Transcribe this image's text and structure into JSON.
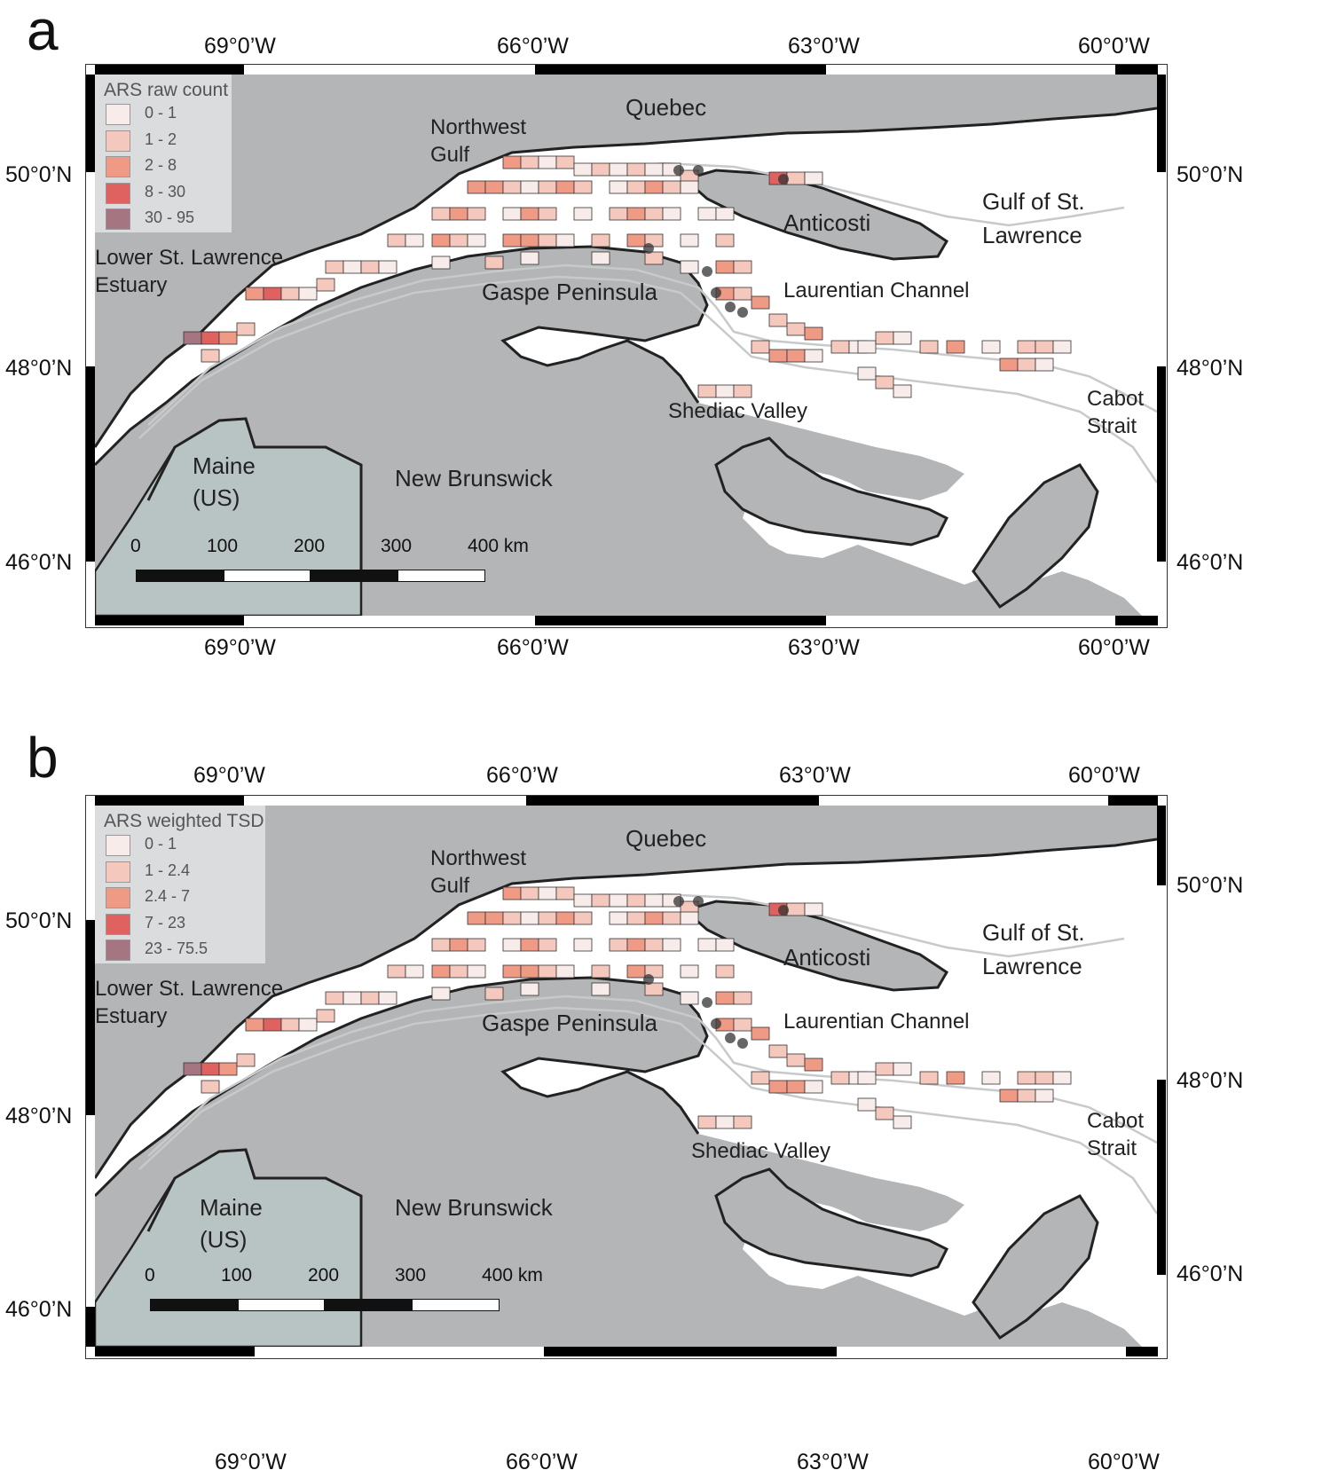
{
  "colors": {
    "land": "#b3b5b6",
    "maine": "#b8c3c3",
    "water": "#ffffff",
    "coast": "#222222",
    "isobath": "#c7c9ca",
    "class1": "#f7ece9",
    "class2": "#f4c8bc",
    "class3": "#ef9a85",
    "class4": "#df6160",
    "class5": "#a67582"
  },
  "panels": [
    {
      "letter": "a",
      "lon_top": [
        "69°0’W",
        "66°0’W",
        "63°0’W",
        "60°0’W"
      ],
      "lon_bottom": [
        "69°0’W",
        "66°0’W",
        "63°0’W",
        "60°0’W"
      ],
      "lat_left": [
        "50°0’N",
        "48°0’N",
        "46°0’N"
      ],
      "lat_right": [
        "50°0’N",
        "48°0’N",
        "46°0’N"
      ],
      "legend": {
        "title": "ARS raw count",
        "items": [
          "0 - 1",
          "1 - 2",
          "2 - 8",
          "8 - 30",
          "30 - 95"
        ]
      },
      "scale": {
        "ticks": [
          "0",
          "100",
          "200",
          "300",
          "400 km"
        ]
      },
      "places": {
        "quebec": "Quebec",
        "nw_gulf_1": "Northwest",
        "nw_gulf_2": "Gulf",
        "lower_1": "Lower St. Lawrence",
        "lower_2": "Estuary",
        "gaspe": "Gaspe Peninsula",
        "anticosti": "Anticosti",
        "gulf_1": "Gulf of St.",
        "gulf_2": "Lawrence",
        "laurentian": "Laurentian Channel",
        "shediac": "Shediac Valley",
        "cabot_1": "Cabot",
        "cabot_2": "Strait",
        "maine_1": "Maine",
        "maine_2": "(US)",
        "nb": "New Brunswick"
      }
    },
    {
      "letter": "b",
      "lon_top": [
        "69°0’W",
        "66°0’W",
        "63°0’W",
        "60°0’W"
      ],
      "lon_bottom": [
        "69°0’W",
        "66°0’W",
        "63°0’W",
        "60°0’W"
      ],
      "lat_left": [
        "50°0’N",
        "48°0’N",
        "46°0’N"
      ],
      "lat_right": [
        "50°0’N",
        "48°0’N",
        "46°0’N"
      ],
      "legend": {
        "title": "ARS weighted TSD",
        "items": [
          "0 - 1",
          "1 - 2.4",
          "2.4 - 7",
          "7 - 23",
          "23 - 75.5"
        ]
      },
      "scale": {
        "ticks": [
          "0",
          "100",
          "200",
          "300",
          "400 km"
        ]
      },
      "places": {
        "quebec": "Quebec",
        "nw_gulf_1": "Northwest",
        "nw_gulf_2": "Gulf",
        "lower_1": "Lower St. Lawrence",
        "lower_2": "Estuary",
        "gaspe": "Gaspe Peninsula",
        "anticosti": "Anticosti",
        "gulf_1": "Gulf of St.",
        "gulf_2": "Lawrence",
        "laurentian": "Laurentian Channel",
        "shediac": "Shediac Valley",
        "cabot_1": "Cabot",
        "cabot_2": "Strait",
        "maine_1": "Maine",
        "maine_2": "(US)",
        "nb": "New Brunswick"
      }
    }
  ]
}
